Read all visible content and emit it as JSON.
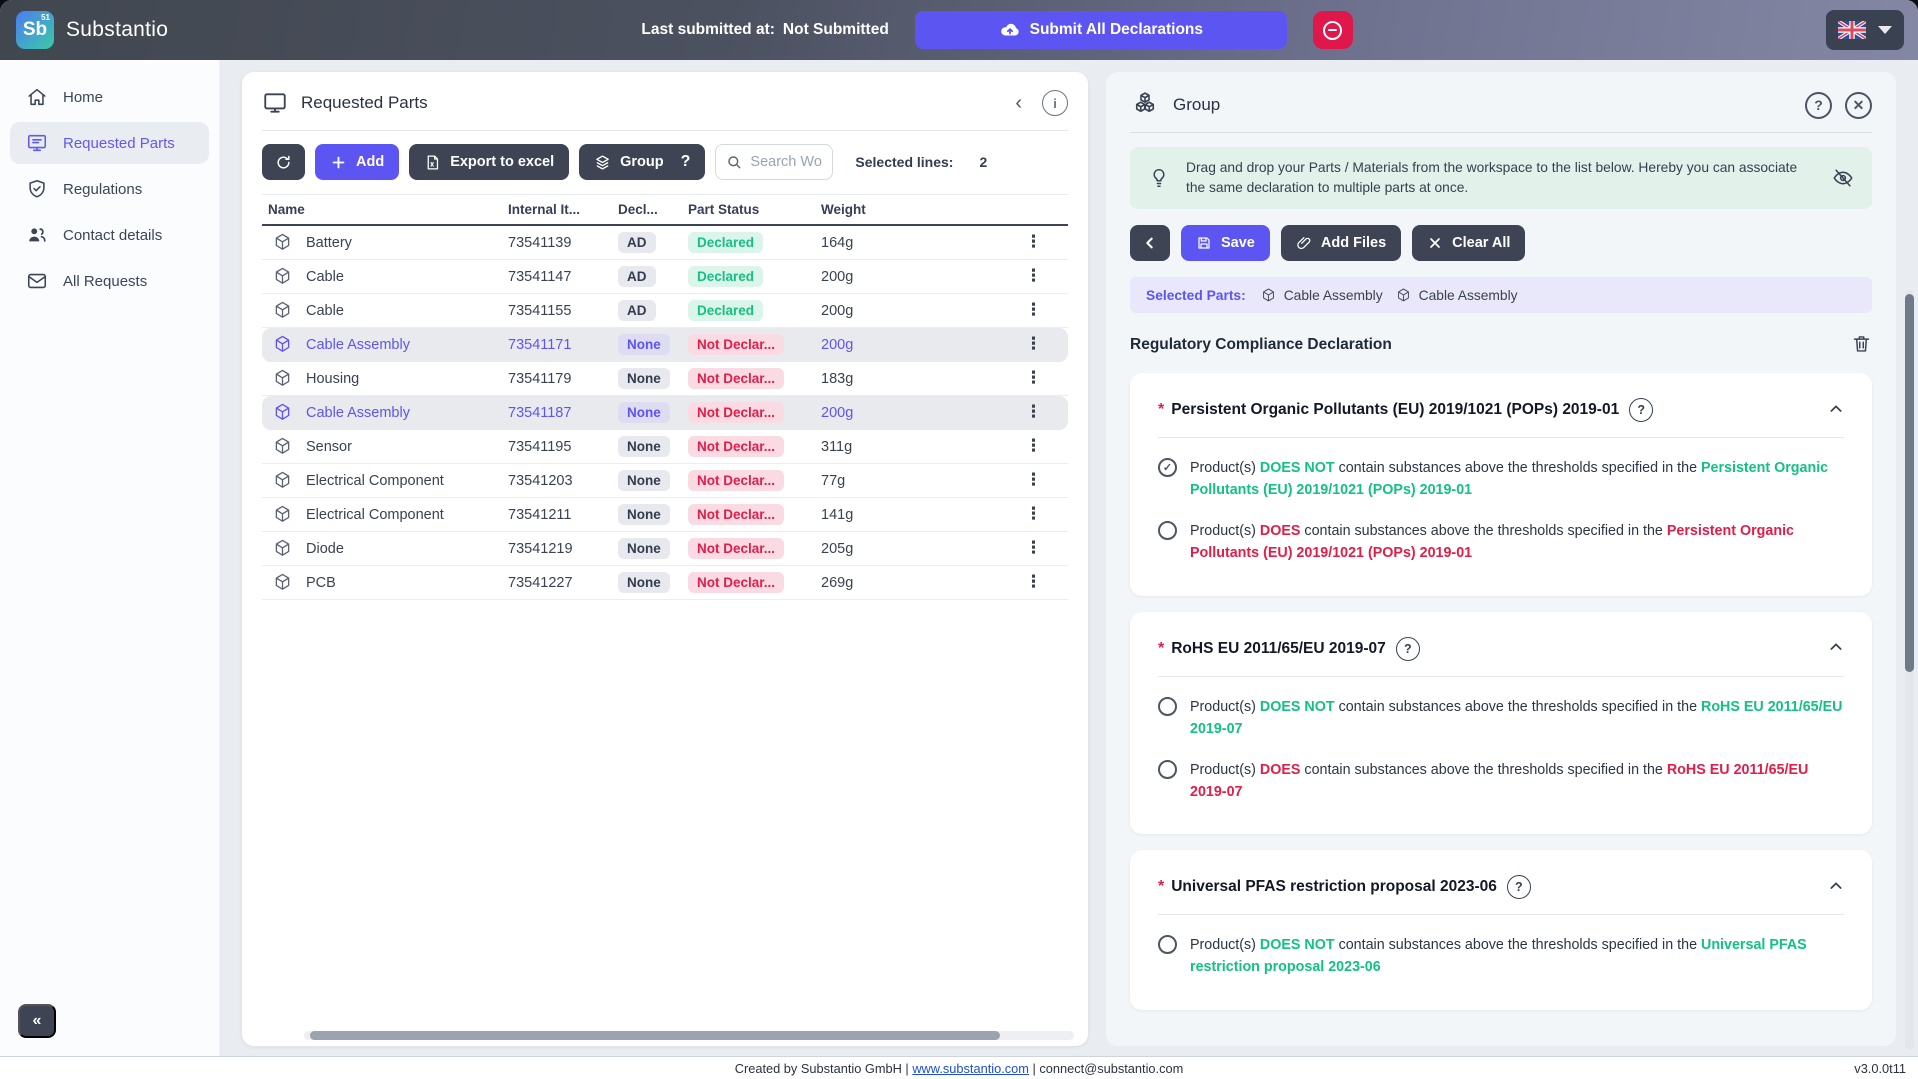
{
  "topbar": {
    "logo": {
      "symbol": "Sb",
      "superscript": "51"
    },
    "brand": "Substantio",
    "last_submitted_label": "Last submitted at:",
    "last_submitted_value": "Not Submitted",
    "submit_label": "Submit All Declarations"
  },
  "sidebar": {
    "items": [
      {
        "label": "Home",
        "icon": "home-icon",
        "active": false
      },
      {
        "label": "Requested Parts",
        "icon": "monitor-icon",
        "active": true
      },
      {
        "label": "Regulations",
        "icon": "shield-check-icon",
        "active": false
      },
      {
        "label": "Contact details",
        "icon": "users-icon",
        "active": false
      },
      {
        "label": "All Requests",
        "icon": "mail-icon",
        "active": false
      }
    ],
    "collapse_glyph": "«"
  },
  "parts": {
    "title": "Requested Parts",
    "toolbar": {
      "add": "Add",
      "export": "Export to excel",
      "group": "Group",
      "group_help": "?",
      "search_placeholder": "Search Wo",
      "selected_lines_label": "Selected lines:",
      "selected_lines_value": "2"
    },
    "table": {
      "columns": [
        "Name",
        "Internal It...",
        "Decl...",
        "Part Status",
        "Weight"
      ],
      "rows": [
        {
          "name": "Battery",
          "internal_id": "73541139",
          "decl": "AD",
          "status": "Declared",
          "status_type": "declared",
          "weight": "164g",
          "selected": false
        },
        {
          "name": "Cable",
          "internal_id": "73541147",
          "decl": "AD",
          "status": "Declared",
          "status_type": "declared",
          "weight": "200g",
          "selected": false
        },
        {
          "name": "Cable",
          "internal_id": "73541155",
          "decl": "AD",
          "status": "Declared",
          "status_type": "declared",
          "weight": "200g",
          "selected": false
        },
        {
          "name": "Cable Assembly",
          "internal_id": "73541171",
          "decl": "None",
          "status": "Not Declar...",
          "status_type": "notdeclared",
          "weight": "200g",
          "selected": true
        },
        {
          "name": "Housing",
          "internal_id": "73541179",
          "decl": "None",
          "status": "Not Declar...",
          "status_type": "notdeclared",
          "weight": "183g",
          "selected": false
        },
        {
          "name": "Cable Assembly",
          "internal_id": "73541187",
          "decl": "None",
          "status": "Not Declar...",
          "status_type": "notdeclared",
          "weight": "200g",
          "selected": true
        },
        {
          "name": "Sensor",
          "internal_id": "73541195",
          "decl": "None",
          "status": "Not Declar...",
          "status_type": "notdeclared",
          "weight": "311g",
          "selected": false
        },
        {
          "name": "Electrical Component",
          "internal_id": "73541203",
          "decl": "None",
          "status": "Not Declar...",
          "status_type": "notdeclared",
          "weight": "77g",
          "selected": false
        },
        {
          "name": "Electrical Component",
          "internal_id": "73541211",
          "decl": "None",
          "status": "Not Declar...",
          "status_type": "notdeclared",
          "weight": "141g",
          "selected": false
        },
        {
          "name": "Diode",
          "internal_id": "73541219",
          "decl": "None",
          "status": "Not Declar...",
          "status_type": "notdeclared",
          "weight": "205g",
          "selected": false
        },
        {
          "name": "PCB",
          "internal_id": "73541227",
          "decl": "None",
          "status": "Not Declar...",
          "status_type": "notdeclared",
          "weight": "269g",
          "selected": false
        }
      ]
    }
  },
  "group": {
    "title": "Group",
    "hint": "Drag and drop your Parts / Materials from the workspace to the list below. Hereby you can associate the same declaration to multiple parts at once.",
    "buttons": {
      "save": "Save",
      "add_files": "Add Files",
      "clear_all": "Clear All"
    },
    "selected_parts_label": "Selected Parts:",
    "selected_parts": [
      "Cable Assembly",
      "Cable Assembly"
    ],
    "section_title": "Regulatory Compliance Declaration",
    "help_glyph": "?",
    "close_glyph": "✕",
    "declarations": [
      {
        "title": "Persistent Organic Pollutants (EU) 2019/1021 (POPs) 2019-01",
        "required": "*",
        "options": [
          {
            "checked": true,
            "tone": "green",
            "before": "Product(s) ",
            "verdict": "DOES NOT",
            "after": " contain substances above the thresholds specified in the ",
            "link": "Persistent Organic Pollutants (EU) 2019/1021 (POPs) 2019-01"
          },
          {
            "checked": false,
            "tone": "red",
            "before": "Product(s) ",
            "verdict": "DOES",
            "after": " contain substances above the thresholds specified in the ",
            "link": "Persistent Organic Pollutants (EU) 2019/1021 (POPs) 2019-01"
          }
        ]
      },
      {
        "title": "RoHS EU 2011/65/EU 2019-07",
        "required": "*",
        "options": [
          {
            "checked": false,
            "tone": "green",
            "before": "Product(s) ",
            "verdict": "DOES NOT",
            "after": " contain substances above the thresholds specified in the ",
            "link": "RoHS EU 2011/65/EU 2019-07"
          },
          {
            "checked": false,
            "tone": "red",
            "before": "Product(s) ",
            "verdict": "DOES",
            "after": " contain substances above the thresholds specified in the ",
            "link": "RoHS EU 2011/65/EU 2019-07"
          }
        ]
      },
      {
        "title": "Universal PFAS restriction proposal 2023-06",
        "required": "*",
        "options": [
          {
            "checked": false,
            "tone": "green",
            "before": "Product(s) ",
            "verdict": "DOES NOT",
            "after": " contain substances above the thresholds specified in the ",
            "link": "Universal PFAS restriction proposal 2023-06"
          }
        ]
      }
    ]
  },
  "footer": {
    "created_by": "Created by Substantio GmbH",
    "sep": "|",
    "website": "www.substantio.com",
    "email": "connect@substantio.com",
    "version": "v3.0.0t11"
  },
  "colors": {
    "accent": "#5d55f2",
    "dark": "#3e4454",
    "green": "#13c184",
    "red": "#e11d48",
    "danger_btn": "#e0174a"
  }
}
